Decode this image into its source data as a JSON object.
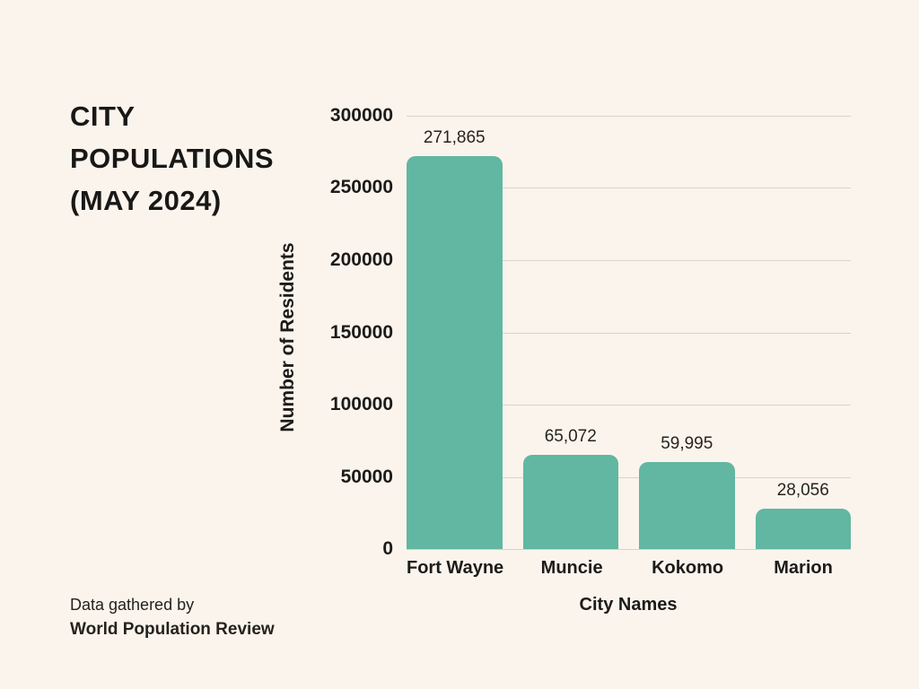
{
  "colors": {
    "background": "#FBF4EC",
    "bar": "#61B7A1",
    "gridline": "#D7D3CD",
    "text": "#1C1B19"
  },
  "title": {
    "text": "CITY POPULATIONS (MAY 2024)"
  },
  "footer": {
    "prefix": "Data gathered by",
    "source": "World Population Review"
  },
  "chart_data": {
    "type": "bar",
    "title": "CITY POPULATIONS (MAY 2024)",
    "xlabel": "City Names",
    "ylabel": "Number of Residents",
    "categories": [
      "Fort Wayne",
      "Muncie",
      "Kokomo",
      "Marion"
    ],
    "values": [
      271865,
      65072,
      59995,
      28056
    ],
    "value_labels": [
      "271,865",
      "65,072",
      "59,995",
      "28,056"
    ],
    "ylim": [
      0,
      300000
    ],
    "ytick_step": 50000,
    "ytick_labels": [
      "300000",
      "250000",
      "200000",
      "150000",
      "100000",
      "50000",
      "0"
    ],
    "grid": true,
    "legend": false,
    "bar_color": "#61B7A1",
    "background_color": "#FBF4EC"
  }
}
